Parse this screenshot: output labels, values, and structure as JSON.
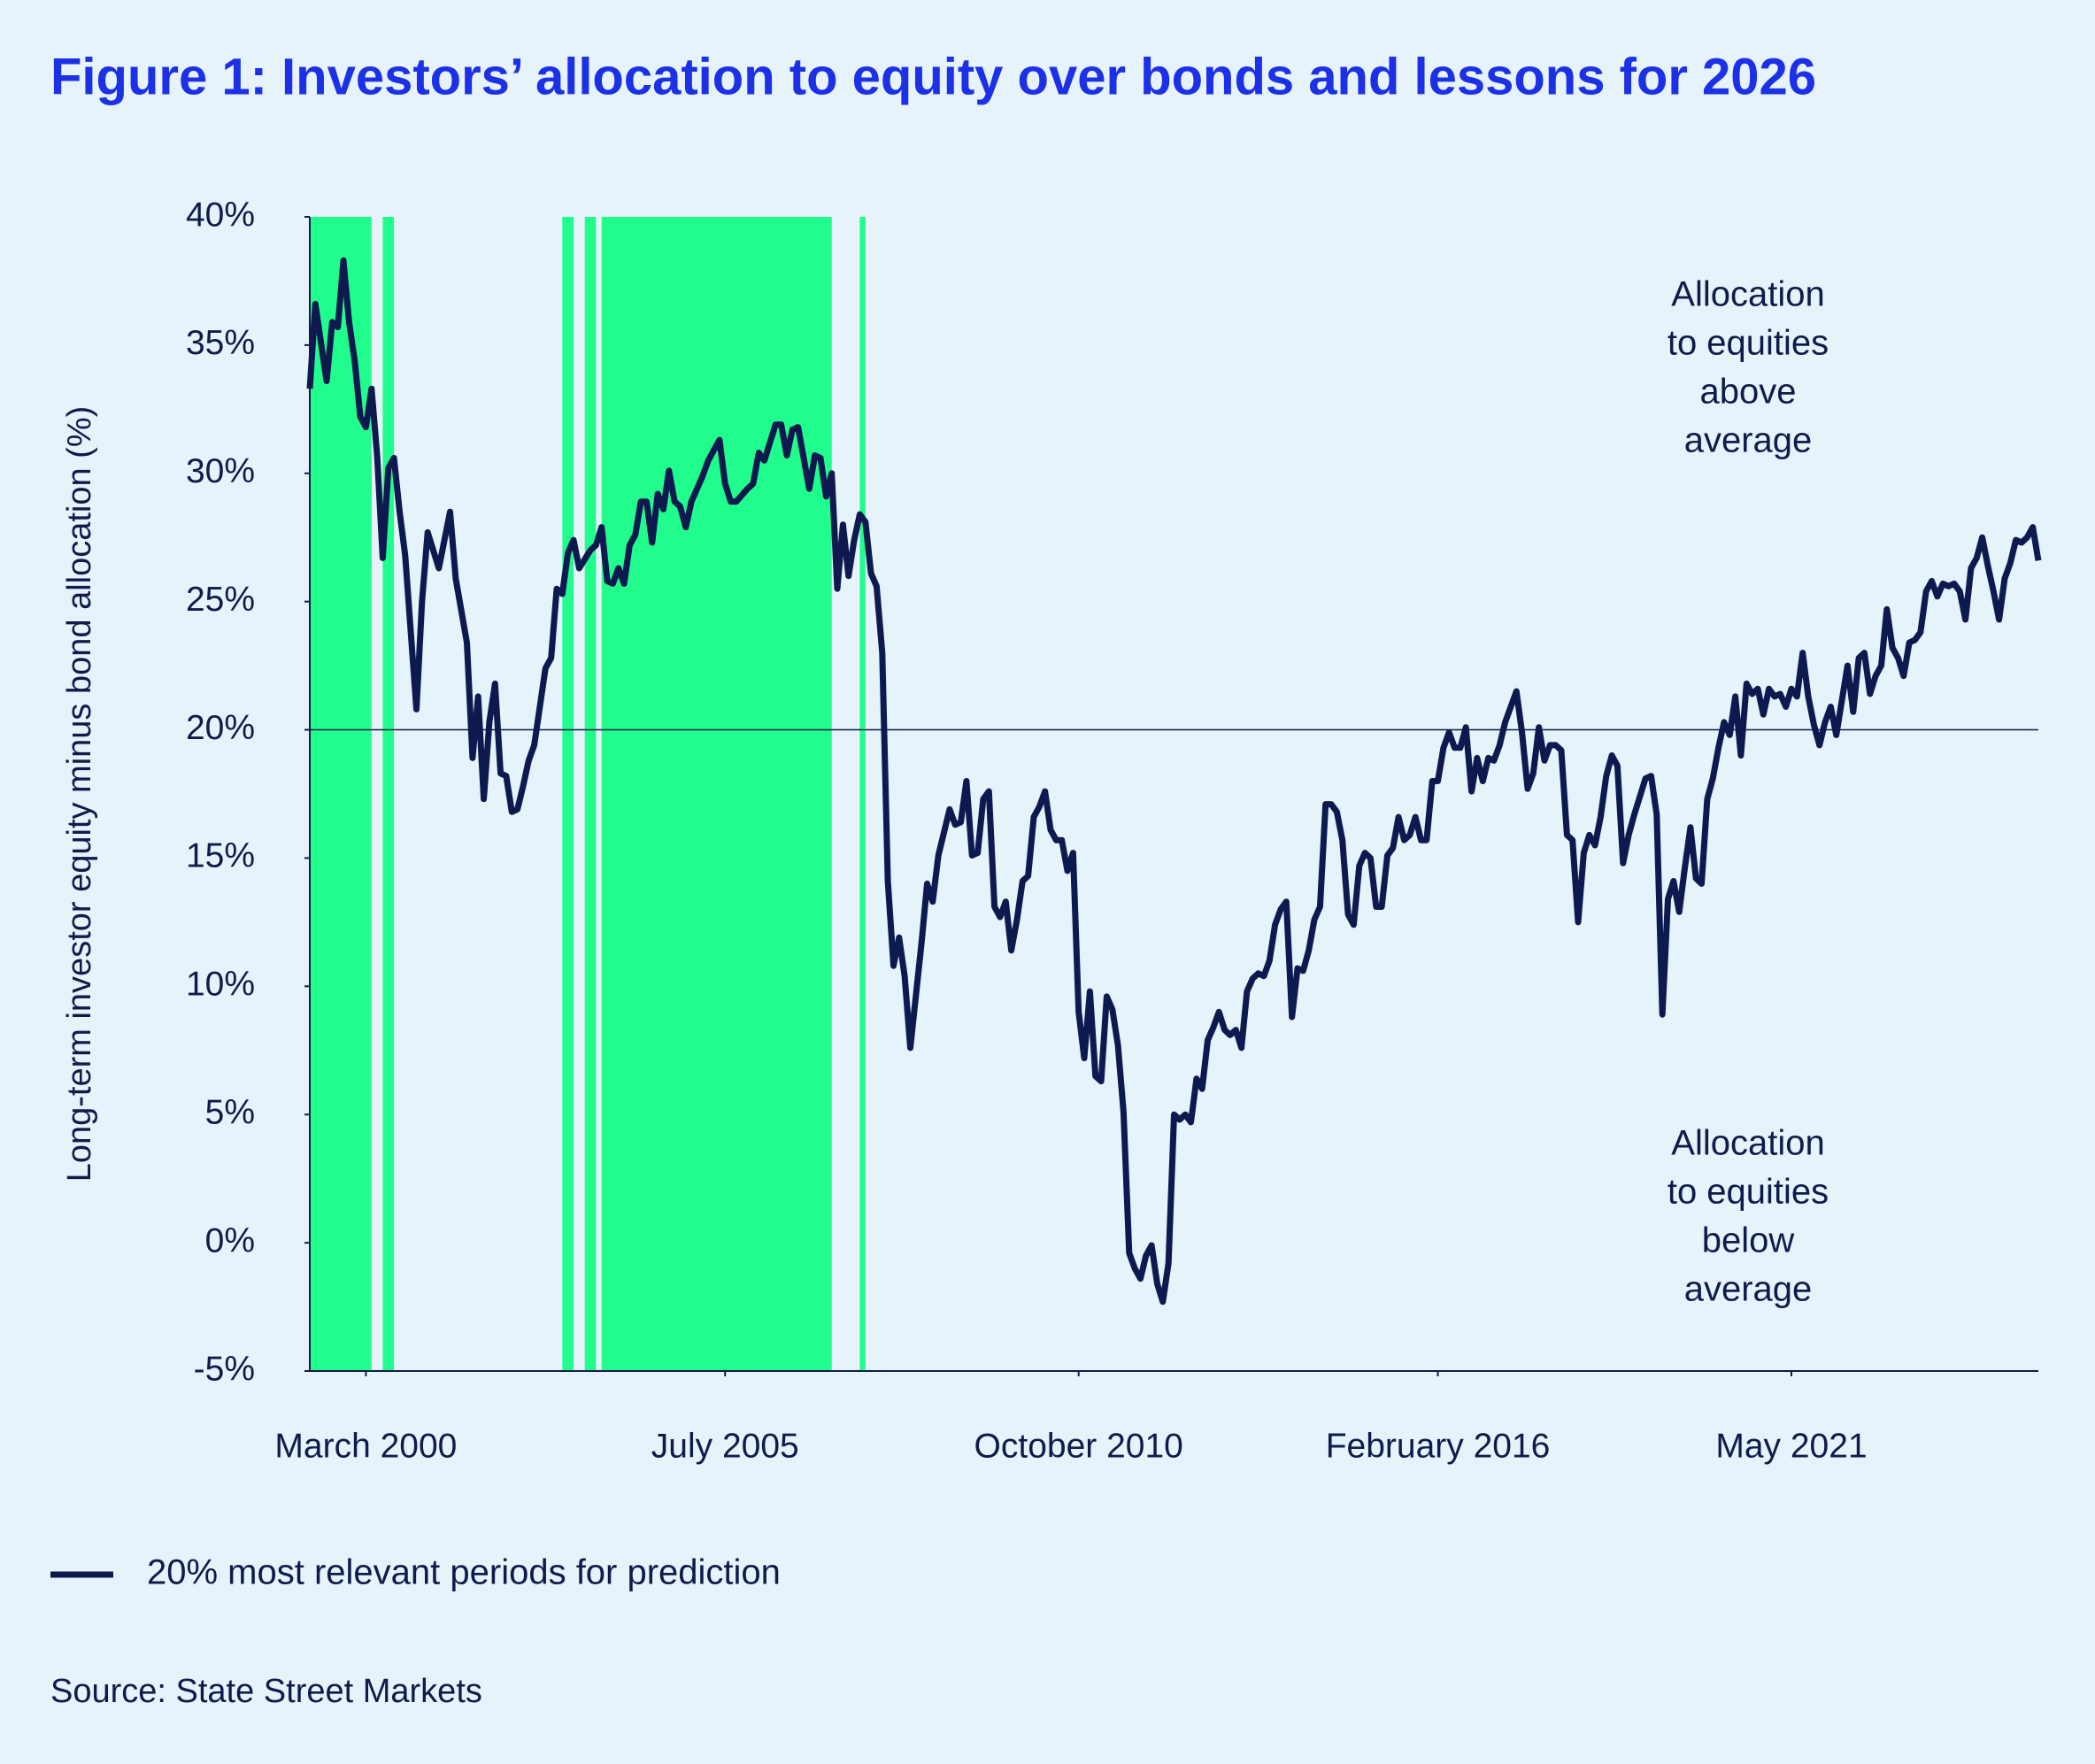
{
  "chart_data": {
    "type": "line",
    "title": "Figure 1: Investors’ allocation to equity over bonds and lessons for 2026",
    "y_label": "Long-term investor equity minus bond allocation (%)",
    "source": "Source: State Street Markets",
    "annotation_above": [
      "Allocation",
      "to equities",
      "above",
      "average"
    ],
    "annotation_below": [
      "Allocation",
      "to equities",
      "below",
      "average"
    ],
    "reference_line": 20,
    "shade_color": "#21fd8c",
    "shaded_periods": [
      [
        "1999-05",
        "2000-04"
      ],
      [
        "2000-06",
        "2000-08"
      ],
      [
        "2003-02",
        "2003-04"
      ],
      [
        "2003-06",
        "2003-08"
      ],
      [
        "2003-09",
        "2007-02"
      ],
      [
        "2007-07",
        "2007-08"
      ]
    ],
    "xlim": [
      "1999-05",
      "2025-01"
    ],
    "xticks": [
      {
        "value": "2000-03",
        "label": "March 2000"
      },
      {
        "value": "2005-07",
        "label": "July 2005"
      },
      {
        "value": "2010-10",
        "label": "October 2010"
      },
      {
        "value": "2016-02",
        "label": "February 2016"
      },
      {
        "value": "2021-05",
        "label": "May 2021"
      }
    ],
    "ylim": [
      -5,
      40
    ],
    "yticks": [
      {
        "value": -5,
        "label": "-5%"
      },
      {
        "value": 0,
        "label": "0%"
      },
      {
        "value": 5,
        "label": "5%"
      },
      {
        "value": 10,
        "label": "10%"
      },
      {
        "value": 15,
        "label": "15%"
      },
      {
        "value": 20,
        "label": "20%"
      },
      {
        "value": 25,
        "label": "25%"
      },
      {
        "value": 30,
        "label": "30%"
      },
      {
        "value": 35,
        "label": "35%"
      },
      {
        "value": 40,
        "label": "40%"
      }
    ],
    "x": [
      "1999-05",
      "1999-06",
      "1999-08",
      "1999-09",
      "1999-10",
      "1999-11",
      "1999-12",
      "2000-01",
      "2000-02",
      "2000-03",
      "2000-04",
      "2000-05",
      "2000-06",
      "2000-07",
      "2000-08",
      "2000-09",
      "2000-10",
      "2000-12",
      "2001-01",
      "2001-02",
      "2001-04",
      "2001-06",
      "2001-07",
      "2001-09",
      "2001-10",
      "2001-11",
      "2001-12",
      "2002-01",
      "2002-02",
      "2002-03",
      "2002-04",
      "2002-05",
      "2002-06",
      "2002-07",
      "2002-08",
      "2002-09",
      "2002-11",
      "2002-12",
      "2003-01",
      "2003-02",
      "2003-03",
      "2003-04",
      "2003-05",
      "2003-07",
      "2003-08",
      "2003-09",
      "2003-10",
      "2003-11",
      "2003-12",
      "2004-01",
      "2004-02",
      "2004-03",
      "2004-04",
      "2004-05",
      "2004-06",
      "2004-07",
      "2004-08",
      "2004-09",
      "2004-10",
      "2004-11",
      "2004-12",
      "2005-01",
      "2005-03",
      "2005-04",
      "2005-06",
      "2005-07",
      "2005-08",
      "2005-09",
      "2005-11",
      "2005-12",
      "2006-01",
      "2006-02",
      "2006-04",
      "2006-05",
      "2006-06",
      "2006-07",
      "2006-08",
      "2006-09",
      "2006-10",
      "2006-11",
      "2006-12",
      "2007-01",
      "2007-02",
      "2007-03",
      "2007-04",
      "2007-05",
      "2007-06",
      "2007-07",
      "2007-08",
      "2007-09",
      "2007-10",
      "2007-11",
      "2007-12",
      "2008-01",
      "2008-02",
      "2008-03",
      "2008-04",
      "2008-06",
      "2008-07",
      "2008-08",
      "2008-09",
      "2008-11",
      "2008-12",
      "2009-01",
      "2009-02",
      "2009-03",
      "2009-04",
      "2009-05",
      "2009-06",
      "2009-07",
      "2009-08",
      "2009-09",
      "2009-10",
      "2009-11",
      "2009-12",
      "2010-01",
      "2010-02",
      "2010-03",
      "2010-04",
      "2010-05",
      "2010-06",
      "2010-07",
      "2010-08",
      "2010-09",
      "2010-10",
      "2010-11",
      "2010-12",
      "2011-01",
      "2011-02",
      "2011-03",
      "2011-04",
      "2011-05",
      "2011-06",
      "2011-07",
      "2011-08",
      "2011-09",
      "2011-10",
      "2011-11",
      "2011-12",
      "2012-01",
      "2012-02",
      "2012-03",
      "2012-04",
      "2012-05",
      "2012-06",
      "2012-07",
      "2012-08",
      "2012-09",
      "2012-10",
      "2012-11",
      "2012-12",
      "2013-01",
      "2013-02",
      "2013-03",
      "2013-04",
      "2013-05",
      "2013-06",
      "2013-07",
      "2013-08",
      "2013-09",
      "2013-10",
      "2013-11",
      "2013-12",
      "2014-01",
      "2014-02",
      "2014-03",
      "2014-04",
      "2014-05",
      "2014-06",
      "2014-07",
      "2014-08",
      "2014-09",
      "2014-10",
      "2014-11",
      "2014-12",
      "2015-01",
      "2015-02",
      "2015-03",
      "2015-04",
      "2015-05",
      "2015-06",
      "2015-07",
      "2015-08",
      "2015-09",
      "2015-10",
      "2015-11",
      "2015-12",
      "2016-01",
      "2016-02",
      "2016-03",
      "2016-04",
      "2016-05",
      "2016-06",
      "2016-07",
      "2016-08",
      "2016-09",
      "2016-10",
      "2016-11",
      "2016-12",
      "2017-01",
      "2017-02",
      "2017-04",
      "2017-05",
      "2017-06",
      "2017-07",
      "2017-08",
      "2017-09",
      "2017-10",
      "2017-11",
      "2017-12",
      "2018-01",
      "2018-02",
      "2018-03",
      "2018-04",
      "2018-05",
      "2018-06",
      "2018-07",
      "2018-08",
      "2018-09",
      "2018-10",
      "2018-11",
      "2018-12",
      "2019-01",
      "2019-02",
      "2019-03",
      "2019-04",
      "2019-05",
      "2019-06",
      "2019-07",
      "2019-08",
      "2019-09",
      "2019-10",
      "2019-11",
      "2019-12",
      "2020-01",
      "2020-02",
      "2020-03",
      "2020-04",
      "2020-05",
      "2020-06",
      "2020-07",
      "2020-08",
      "2020-09",
      "2020-10",
      "2020-11",
      "2020-12",
      "2021-01",
      "2021-02",
      "2021-03",
      "2021-04",
      "2021-05",
      "2021-06",
      "2021-07",
      "2021-08",
      "2021-09",
      "2021-10",
      "2021-11",
      "2021-12",
      "2022-01",
      "2022-03",
      "2022-04",
      "2022-05",
      "2022-06",
      "2022-07",
      "2022-08",
      "2022-09",
      "2022-10",
      "2022-11",
      "2022-12",
      "2023-01",
      "2023-02",
      "2023-03",
      "2023-04",
      "2023-05",
      "2023-06",
      "2023-07",
      "2023-08",
      "2023-09",
      "2023-10",
      "2023-11",
      "2023-12",
      "2024-01",
      "2024-02",
      "2024-03",
      "2024-04",
      "2024-05",
      "2024-06",
      "2024-07",
      "2024-08",
      "2024-09",
      "2024-10",
      "2024-11",
      "2024-12",
      "2025-01"
    ],
    "series": [
      {
        "name": "20% most relevant periods for prediction",
        "color": "#0e1a4f",
        "values": [
          33.3,
          36.6,
          33.6,
          35.9,
          35.7,
          38.3,
          35.9,
          34.4,
          32.2,
          31.8,
          33.3,
          30.7,
          26.7,
          30.2,
          30.6,
          28.5,
          26.8,
          20.8,
          25.0,
          27.7,
          26.3,
          28.5,
          25.9,
          23.4,
          18.9,
          21.3,
          17.3,
          20.3,
          21.8,
          18.3,
          18.2,
          16.8,
          16.9,
          17.8,
          18.8,
          19.4,
          22.4,
          22.8,
          25.5,
          25.3,
          26.9,
          27.4,
          26.3,
          27.0,
          27.2,
          27.9,
          25.8,
          25.7,
          26.3,
          25.7,
          27.2,
          27.6,
          28.9,
          28.9,
          27.3,
          29.2,
          28.6,
          30.1,
          28.9,
          28.7,
          27.9,
          28.9,
          29.9,
          30.5,
          31.3,
          29.6,
          28.9,
          28.9,
          29.4,
          29.6,
          30.8,
          30.5,
          31.9,
          31.9,
          30.7,
          31.7,
          31.8,
          30.6,
          29.4,
          30.7,
          30.6,
          29.1,
          30.0,
          25.5,
          28.0,
          26.0,
          27.4,
          28.4,
          28.1,
          26.1,
          25.6,
          23.0,
          14.1,
          10.8,
          11.9,
          10.4,
          7.6,
          11.7,
          14.0,
          13.3,
          15.1,
          16.9,
          16.3,
          16.4,
          18.0,
          15.1,
          15.2,
          17.3,
          17.6,
          13.1,
          12.7,
          13.3,
          11.4,
          12.6,
          14.1,
          14.3,
          16.6,
          17.0,
          17.6,
          16.1,
          15.7,
          15.7,
          14.5,
          15.2,
          9.0,
          7.2,
          9.8,
          6.5,
          6.3,
          9.6,
          9.1,
          7.7,
          5.1,
          -0.4,
          -1.0,
          -1.4,
          -0.5,
          -0.1,
          -1.6,
          -2.3,
          -0.8,
          5.0,
          4.8,
          5.0,
          4.7,
          6.4,
          6.0,
          7.9,
          8.4,
          9.0,
          8.3,
          8.1,
          8.3,
          7.6,
          9.8,
          10.3,
          10.5,
          10.4,
          11.0,
          12.4,
          13.0,
          13.3,
          8.8,
          10.7,
          10.6,
          11.4,
          12.6,
          13.1,
          17.1,
          17.1,
          16.8,
          15.7,
          12.8,
          12.4,
          14.7,
          15.2,
          15.0,
          13.1,
          13.1,
          15.1,
          15.4,
          16.6,
          15.7,
          15.9,
          16.6,
          15.7,
          15.7,
          18.0,
          18.0,
          19.3,
          19.9,
          19.3,
          19.3,
          20.1,
          17.6,
          18.9,
          18.0,
          18.9,
          18.8,
          19.4,
          20.3,
          21.5,
          19.9,
          17.7,
          18.3,
          20.1,
          18.8,
          19.4,
          19.4,
          19.2,
          15.9,
          15.7,
          12.5,
          15.2,
          15.9,
          15.5,
          16.6,
          18.2,
          19.0,
          18.6,
          14.8,
          15.9,
          16.7,
          17.4,
          18.1,
          18.2,
          16.7,
          8.9,
          13.4,
          14.1,
          12.9,
          14.6,
          16.2,
          14.2,
          14.0,
          17.3,
          18.1,
          19.3,
          20.3,
          19.8,
          21.3,
          19.0,
          21.8,
          21.4,
          21.6,
          20.6,
          21.6,
          21.3,
          21.4,
          20.9,
          21.6,
          21.3,
          23.0,
          21.3,
          20.2,
          19.4,
          20.3,
          20.9,
          19.8,
          22.5,
          20.7,
          22.8,
          23.0,
          21.4,
          22.1,
          22.5,
          24.7,
          23.2,
          22.8,
          22.1,
          23.4,
          23.5,
          23.8,
          25.4,
          25.8,
          25.2,
          25.7,
          25.6,
          25.7,
          25.4,
          24.3,
          26.3,
          26.7,
          27.5,
          26.4,
          25.4,
          24.3,
          25.9,
          26.5,
          27.4,
          27.3,
          27.5,
          27.9,
          26.6
        ]
      }
    ]
  }
}
